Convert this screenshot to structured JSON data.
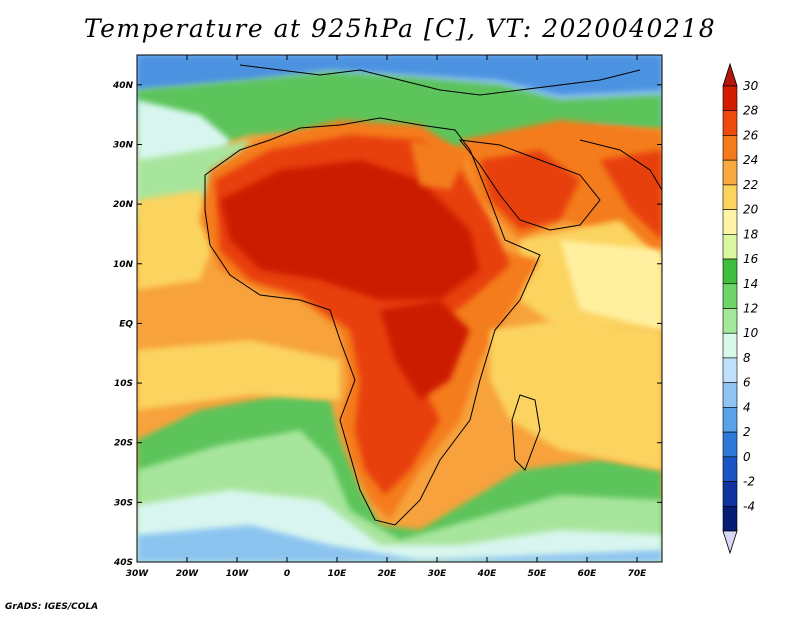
{
  "title": "Temperature at 925hPa [C], VT: 2020040218",
  "footer": "GrADS: IGES/COLA",
  "map": {
    "variable": "Temperature",
    "level": "925hPa",
    "units": "C",
    "valid_time": "2020040218",
    "lon_range": [
      -30,
      75
    ],
    "lat_range": [
      -40,
      45
    ],
    "x_tick_labels": [
      "30W",
      "20W",
      "10W",
      "0",
      "10E",
      "20E",
      "30E",
      "40E",
      "50E",
      "60E",
      "70E"
    ],
    "y_tick_labels": [
      "40N",
      "30N",
      "20N",
      "10N",
      "EQ",
      "10S",
      "20S",
      "30S",
      "40S"
    ]
  },
  "colorbar": {
    "levels": [
      "30",
      "28",
      "26",
      "24",
      "22",
      "20",
      "18",
      "16",
      "14",
      "12",
      "10",
      "8",
      "6",
      "4",
      "2",
      "0",
      "-2",
      "-4"
    ],
    "colors": [
      "#d21e00",
      "#ee4a0b",
      "#f57a1c",
      "#f9a93f",
      "#fbd35f",
      "#fff3a8",
      "#dcf7a2",
      "#3fbd3f",
      "#6dd56a",
      "#a3e89b",
      "#d8f9e8",
      "#bfe1fb",
      "#8fc4f3",
      "#5aa2e8",
      "#2e7ad9",
      "#1b55c3",
      "#0f33a0",
      "#061e73"
    ],
    "low_end_color": "#d8d8f6",
    "high_end_color": "#b4140a"
  },
  "colors": {
    "hottest": "#cc1f06",
    "hot": "#e8400d",
    "warm_orange": "#f47b1f",
    "orange": "#f7a23c",
    "yellow": "#fbd35f",
    "pale_yellow": "#fff0a0",
    "light_green": "#a8e59c",
    "green": "#5cc45a",
    "dark_green": "#2eaa3c",
    "cyan_pale": "#d8f6ef",
    "light_blue": "#8cc4f0",
    "blue": "#4b92e1"
  }
}
